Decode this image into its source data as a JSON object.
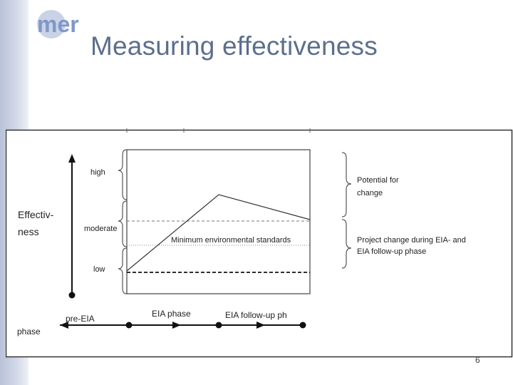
{
  "slide": {
    "title": "Measuring effectiveness",
    "page_number": "6"
  },
  "logo": {
    "text": "mer",
    "color": "#7f98c6"
  },
  "diagram": {
    "y_axis_label_line1": "Effectiv-",
    "y_axis_label_line2": "ness",
    "levels": {
      "high": "high",
      "moderate": "moderate",
      "low": "low"
    },
    "standards_label": "Minimum  environmental standards",
    "brace_labels": {
      "potential_line1": "Potential for",
      "potential_line2": "change",
      "project_line1": "Project change during EIA- and",
      "project_line2": "EIA follow-up phase"
    },
    "phase_axis": {
      "label": "phase",
      "pre": "pre-EIA",
      "eia": "EIA phase",
      "follow": "EIA follow-up ph"
    }
  }
}
